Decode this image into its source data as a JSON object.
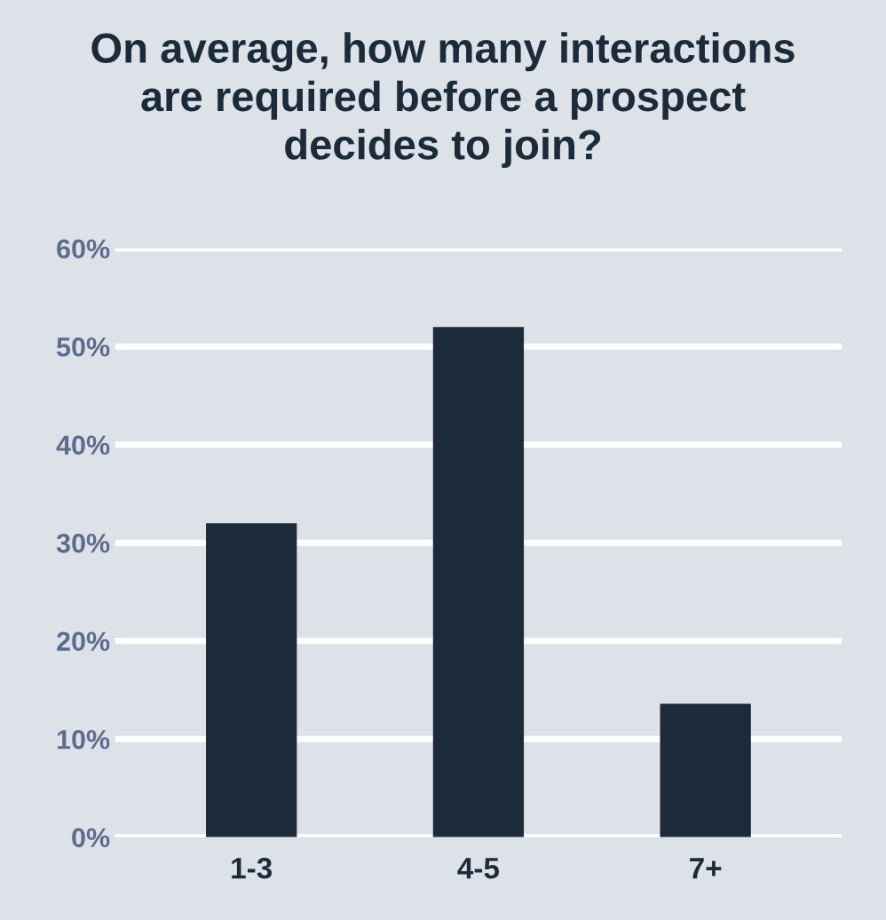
{
  "chart_data": {
    "type": "bar",
    "title": "On average, how many interactions\nare required before a prospect\ndecides to join?",
    "categories": [
      "1-3",
      "4-5",
      "7+"
    ],
    "values": [
      32,
      52,
      13.6
    ],
    "color": "#1c2b39",
    "ylim": [
      0,
      60
    ],
    "yticks": [
      {
        "value": 0,
        "label": "0%"
      },
      {
        "value": 10,
        "label": "10%"
      },
      {
        "value": 20,
        "label": "20%"
      },
      {
        "value": 30,
        "label": "30%"
      },
      {
        "value": 40,
        "label": "40%"
      },
      {
        "value": 50,
        "label": "50%"
      },
      {
        "value": 60,
        "label": "60%"
      }
    ],
    "grid": "y"
  }
}
